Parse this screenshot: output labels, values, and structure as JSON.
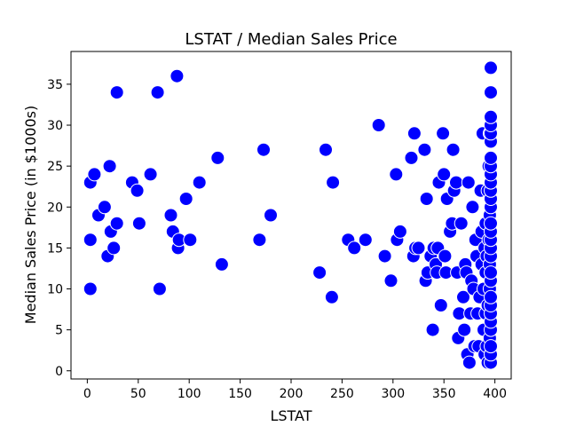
{
  "chart_data": {
    "type": "scatter",
    "title": "LSTAT / Median Sales Price",
    "xlabel": "LSTAT",
    "ylabel": "Median Sales Price (in $1000s)",
    "xlim": [
      -16,
      416
    ],
    "ylim": [
      -1,
      39
    ],
    "xticks": [
      0,
      50,
      100,
      150,
      200,
      250,
      300,
      350,
      400
    ],
    "yticks": [
      0,
      5,
      10,
      15,
      20,
      25,
      30,
      35
    ],
    "grid": false,
    "marker_color": "#0000ff",
    "marker_edge": "#ffffff",
    "points": [
      [
        3,
        10
      ],
      [
        3,
        16
      ],
      [
        3,
        23
      ],
      [
        7,
        24
      ],
      [
        11,
        19
      ],
      [
        17,
        20
      ],
      [
        20,
        14
      ],
      [
        22,
        25
      ],
      [
        23,
        17
      ],
      [
        26,
        15
      ],
      [
        29,
        18
      ],
      [
        29,
        34
      ],
      [
        44,
        23
      ],
      [
        49,
        22
      ],
      [
        51,
        18
      ],
      [
        62,
        24
      ],
      [
        69,
        34
      ],
      [
        71,
        10
      ],
      [
        82,
        19
      ],
      [
        84,
        17
      ],
      [
        88,
        36
      ],
      [
        89,
        15
      ],
      [
        90,
        16
      ],
      [
        97,
        21
      ],
      [
        101,
        16
      ],
      [
        110,
        23
      ],
      [
        128,
        26
      ],
      [
        132,
        13
      ],
      [
        169,
        16
      ],
      [
        173,
        27
      ],
      [
        180,
        19
      ],
      [
        228,
        12
      ],
      [
        234,
        27
      ],
      [
        240,
        9
      ],
      [
        241,
        23
      ],
      [
        256,
        16
      ],
      [
        262,
        15
      ],
      [
        273,
        16
      ],
      [
        286,
        30
      ],
      [
        292,
        14
      ],
      [
        298,
        11
      ],
      [
        303,
        24
      ],
      [
        304,
        16
      ],
      [
        307,
        17
      ],
      [
        318,
        26
      ],
      [
        320,
        14
      ],
      [
        321,
        29
      ],
      [
        322,
        15
      ],
      [
        325,
        15
      ],
      [
        331,
        27
      ],
      [
        332,
        11
      ],
      [
        333,
        21
      ],
      [
        334,
        12
      ],
      [
        337,
        14
      ],
      [
        339,
        5
      ],
      [
        340,
        15
      ],
      [
        342,
        13
      ],
      [
        343,
        12
      ],
      [
        344,
        15
      ],
      [
        345,
        23
      ],
      [
        347,
        8
      ],
      [
        349,
        29
      ],
      [
        350,
        24
      ],
      [
        351,
        14
      ],
      [
        352,
        12
      ],
      [
        353,
        21
      ],
      [
        356,
        17
      ],
      [
        358,
        18
      ],
      [
        359,
        27
      ],
      [
        360,
        22
      ],
      [
        362,
        23
      ],
      [
        363,
        12
      ],
      [
        364,
        4
      ],
      [
        365,
        7
      ],
      [
        367,
        18
      ],
      [
        369,
        9
      ],
      [
        370,
        5
      ],
      [
        371,
        13
      ],
      [
        372,
        12
      ],
      [
        373,
        2
      ],
      [
        374,
        23
      ],
      [
        375,
        1
      ],
      [
        376,
        7
      ],
      [
        377,
        11
      ],
      [
        378,
        20
      ],
      [
        379,
        10
      ],
      [
        380,
        3
      ],
      [
        381,
        16
      ],
      [
        382,
        14
      ],
      [
        383,
        7
      ],
      [
        384,
        3
      ],
      [
        385,
        9
      ],
      [
        386,
        22
      ],
      [
        387,
        13
      ],
      [
        387,
        17
      ],
      [
        388,
        29
      ],
      [
        389,
        5
      ],
      [
        389,
        10
      ],
      [
        390,
        2
      ],
      [
        390,
        15
      ],
      [
        391,
        7
      ],
      [
        391,
        12
      ],
      [
        391,
        18
      ],
      [
        392,
        3
      ],
      [
        392,
        14
      ],
      [
        393,
        1
      ],
      [
        393,
        8
      ],
      [
        393,
        22
      ],
      [
        394,
        16
      ],
      [
        394,
        25
      ],
      [
        395,
        4
      ],
      [
        395,
        10
      ],
      [
        395,
        13
      ],
      [
        395,
        19
      ],
      [
        395,
        29
      ],
      [
        396,
        1
      ],
      [
        396,
        2
      ],
      [
        396,
        3
      ],
      [
        396,
        5
      ],
      [
        396,
        6
      ],
      [
        396,
        7
      ],
      [
        396,
        8
      ],
      [
        396,
        9
      ],
      [
        396,
        11
      ],
      [
        396,
        12
      ],
      [
        396,
        14
      ],
      [
        396,
        15
      ],
      [
        396,
        16
      ],
      [
        396,
        17
      ],
      [
        396,
        18
      ],
      [
        396,
        20
      ],
      [
        396,
        21
      ],
      [
        396,
        22
      ],
      [
        396,
        23
      ],
      [
        396,
        24
      ],
      [
        396,
        25
      ],
      [
        396,
        26
      ],
      [
        396,
        28
      ],
      [
        396,
        29
      ],
      [
        396,
        30
      ],
      [
        396,
        31
      ],
      [
        396,
        34
      ],
      [
        396,
        37
      ]
    ]
  }
}
